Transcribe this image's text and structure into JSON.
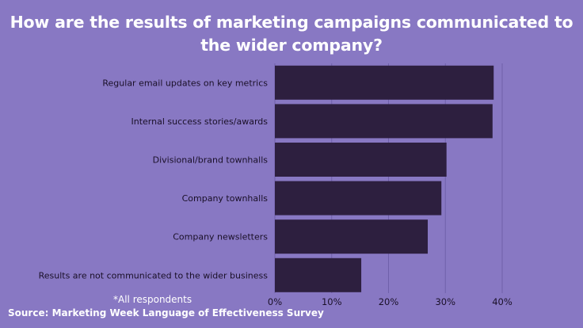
{
  "title_lines": [
    "How are the results of marketing campaigns communicated to",
    "the wider company?"
  ],
  "note": "*All respondents",
  "source": "Source: Marketing Week Language of Effectiveness Survey",
  "colors": {
    "background": "#8878c3",
    "bar": "#2d1f3f",
    "grid": "#6f60aa",
    "text": "#1a1028",
    "title": "#ffffff"
  },
  "chart_data": {
    "type": "bar",
    "orientation": "horizontal",
    "categories": [
      "Regular email updates on key metrics",
      "Internal success stories/awards",
      "Divisional/brand townhalls",
      "Company townhalls",
      "Company newsletters",
      "Results are not communicated to the wider business"
    ],
    "values": [
      38.5,
      38.3,
      30.2,
      29.3,
      26.9,
      15.2
    ],
    "xlim": [
      0,
      40
    ],
    "xticks": [
      0,
      10,
      20,
      30,
      40
    ],
    "tick_labels": [
      "0%",
      "10%",
      "20%",
      "30%",
      "40%"
    ],
    "unit": "%",
    "grid": true,
    "xlabel": "",
    "ylabel": ""
  }
}
